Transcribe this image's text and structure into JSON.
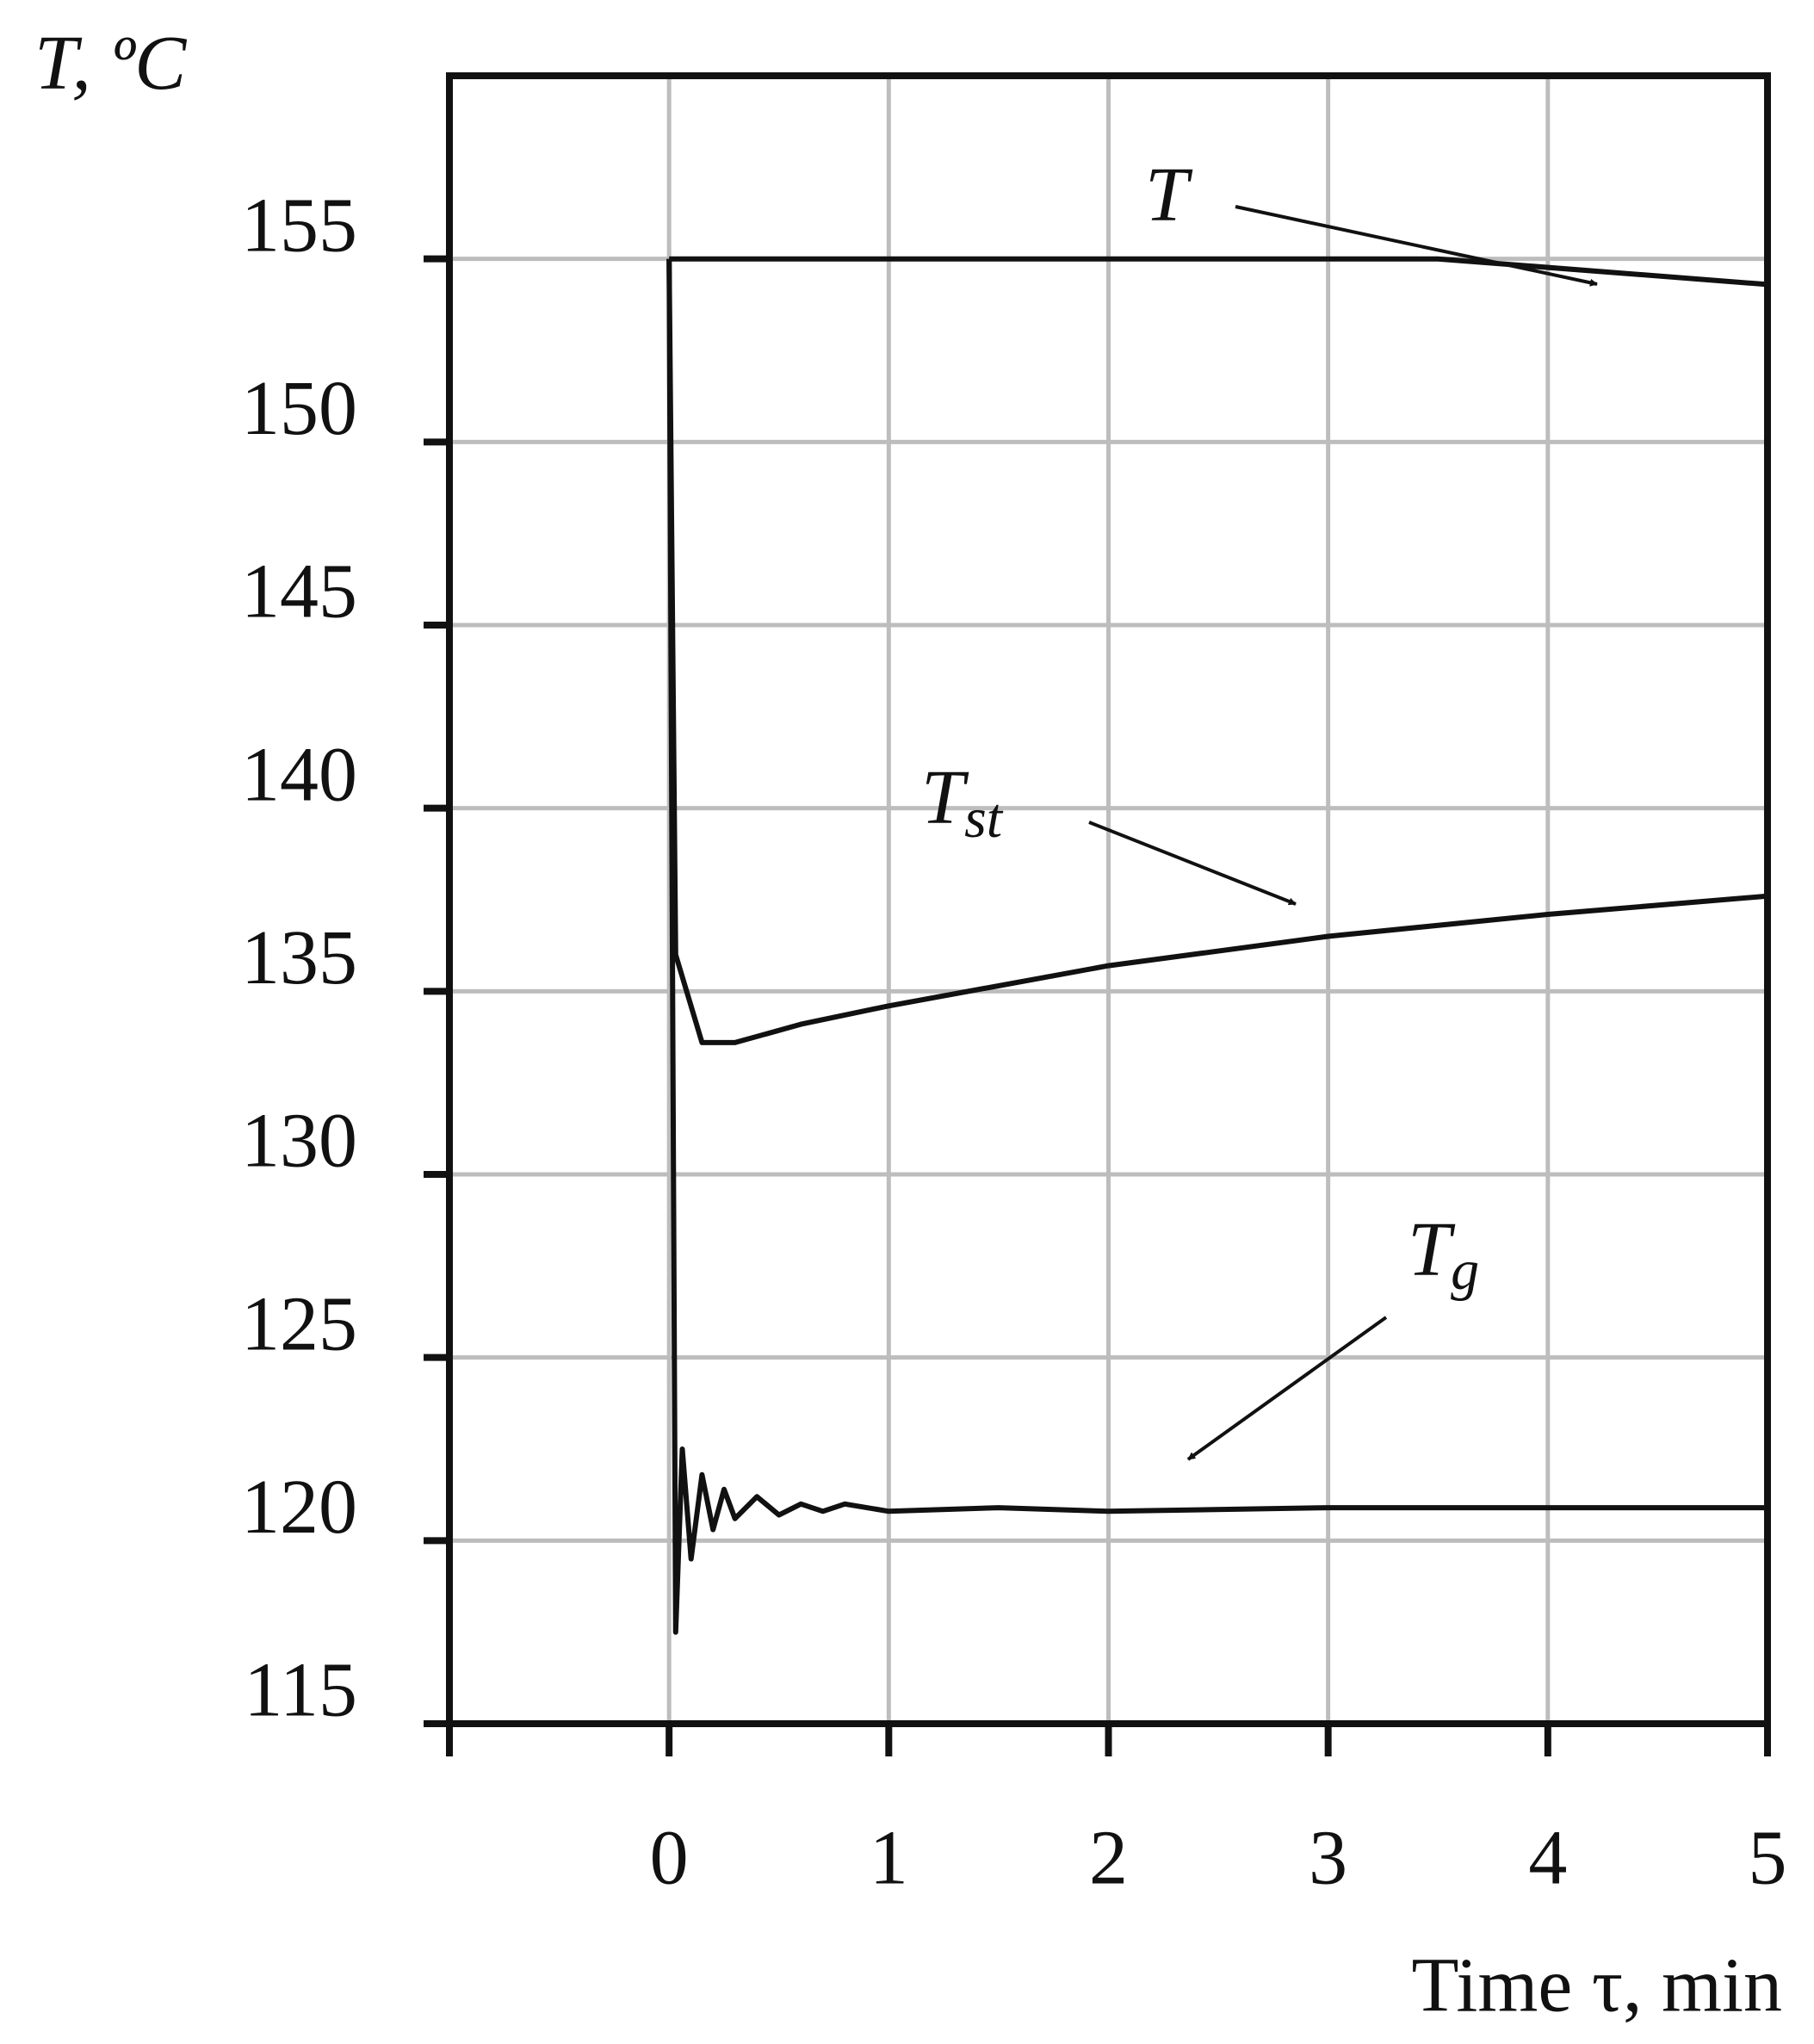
{
  "chart_data": {
    "type": "line",
    "y_label": "T, ºC",
    "x_label": "Time τ, min",
    "xlim": [
      -1,
      5
    ],
    "xticks": [
      0,
      1,
      2,
      3,
      4,
      5
    ],
    "ylim": [
      115,
      160
    ],
    "yticks": [
      115,
      120,
      125,
      130,
      135,
      140,
      145,
      150,
      155
    ],
    "grid": true,
    "series": [
      {
        "name": "T",
        "color": "#111111",
        "x": [
          0,
          3.5,
          5
        ],
        "values": [
          155,
          155,
          154.3
        ]
      },
      {
        "name": "Tst",
        "color": "#111111",
        "x": [
          0,
          0.03,
          0.15,
          0.3,
          0.6,
          1,
          2,
          3,
          4,
          5
        ],
        "values": [
          155,
          136,
          133.6,
          133.6,
          134.1,
          134.6,
          135.7,
          136.5,
          137.1,
          137.6
        ]
      },
      {
        "name": "Tg",
        "color": "#111111",
        "x": [
          0,
          0.03,
          0.06,
          0.1,
          0.15,
          0.2,
          0.25,
          0.3,
          0.4,
          0.5,
          0.6,
          0.7,
          0.8,
          1,
          1.5,
          2,
          3,
          5
        ],
        "values": [
          155,
          117.5,
          122.5,
          119.5,
          121.8,
          120.3,
          121.4,
          120.6,
          121.2,
          120.7,
          121.0,
          120.8,
          121.0,
          120.8,
          120.9,
          120.8,
          120.9,
          120.9
        ]
      }
    ],
    "annotations": [
      {
        "text": "T"
      },
      {
        "text": "T",
        "sub": "st"
      },
      {
        "text": "T",
        "sub": "g"
      }
    ]
  }
}
